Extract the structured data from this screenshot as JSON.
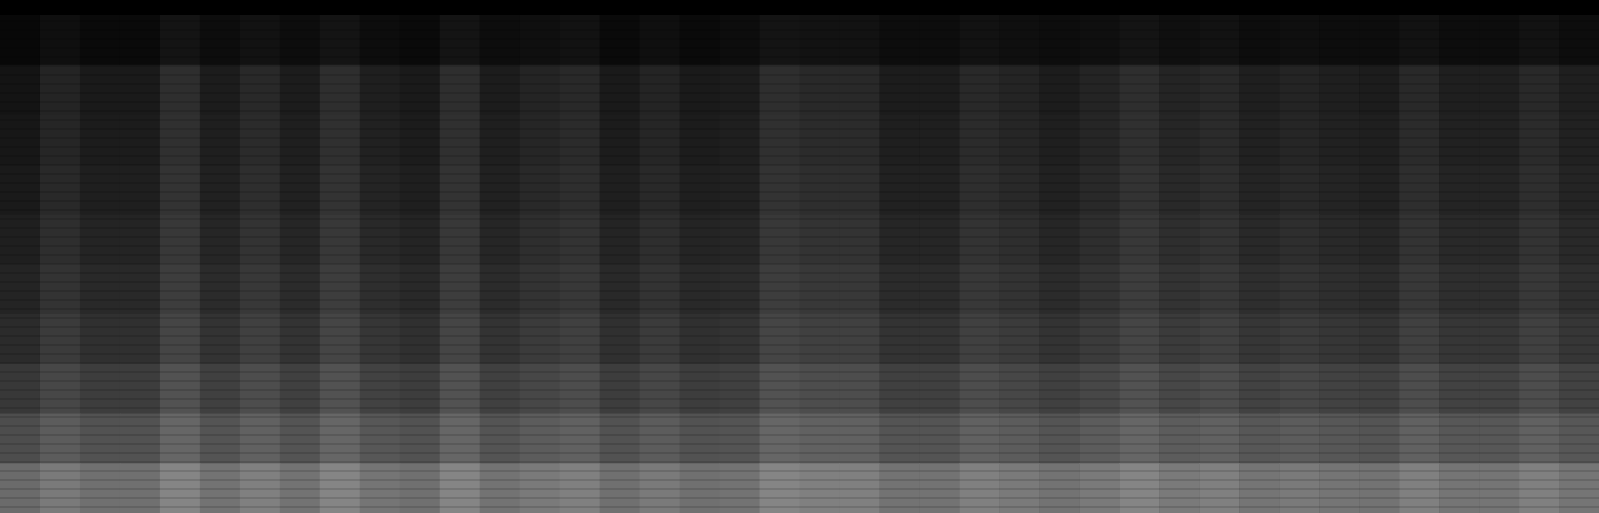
{
  "chart_data": {
    "type": "heatmap",
    "tick_labels": false,
    "grid": false,
    "color": "#ffffff",
    "zlim": [
      0,
      1
    ],
    "cells": [
      [
        0.03,
        0.06,
        0.04,
        0.04,
        0.08,
        0.05,
        0.07,
        0.05,
        0.08,
        0.05,
        0.04,
        0.08,
        0.05,
        0.06,
        0.07,
        0.04,
        0.06,
        0.04,
        0.05,
        0.08,
        0.07,
        0.07,
        0.05,
        0.05,
        0.07,
        0.06,
        0.05,
        0.06,
        0.08,
        0.06,
        0.07,
        0.05,
        0.06,
        0.05,
        0.05,
        0.07,
        0.05,
        0.05,
        0.07,
        0.05
      ],
      [
        0.08,
        0.14,
        0.1,
        0.1,
        0.18,
        0.11,
        0.16,
        0.11,
        0.18,
        0.12,
        0.1,
        0.18,
        0.11,
        0.14,
        0.16,
        0.1,
        0.14,
        0.1,
        0.11,
        0.18,
        0.16,
        0.16,
        0.11,
        0.11,
        0.16,
        0.14,
        0.11,
        0.14,
        0.18,
        0.14,
        0.16,
        0.12,
        0.14,
        0.12,
        0.11,
        0.16,
        0.12,
        0.12,
        0.16,
        0.12
      ],
      [
        0.09,
        0.15,
        0.11,
        0.11,
        0.19,
        0.12,
        0.17,
        0.12,
        0.19,
        0.13,
        0.11,
        0.19,
        0.12,
        0.15,
        0.17,
        0.11,
        0.15,
        0.11,
        0.12,
        0.19,
        0.17,
        0.17,
        0.12,
        0.12,
        0.17,
        0.15,
        0.12,
        0.15,
        0.19,
        0.15,
        0.17,
        0.13,
        0.15,
        0.13,
        0.12,
        0.17,
        0.13,
        0.13,
        0.17,
        0.13
      ],
      [
        0.1,
        0.16,
        0.12,
        0.12,
        0.2,
        0.13,
        0.18,
        0.13,
        0.2,
        0.14,
        0.12,
        0.2,
        0.13,
        0.16,
        0.18,
        0.12,
        0.16,
        0.12,
        0.13,
        0.2,
        0.18,
        0.18,
        0.13,
        0.13,
        0.18,
        0.16,
        0.13,
        0.16,
        0.2,
        0.16,
        0.18,
        0.14,
        0.16,
        0.14,
        0.13,
        0.18,
        0.14,
        0.14,
        0.18,
        0.14
      ],
      [
        0.12,
        0.18,
        0.14,
        0.14,
        0.22,
        0.15,
        0.2,
        0.15,
        0.22,
        0.16,
        0.14,
        0.22,
        0.15,
        0.18,
        0.2,
        0.14,
        0.18,
        0.14,
        0.15,
        0.22,
        0.2,
        0.2,
        0.15,
        0.15,
        0.2,
        0.18,
        0.15,
        0.18,
        0.22,
        0.18,
        0.2,
        0.16,
        0.18,
        0.16,
        0.15,
        0.2,
        0.16,
        0.16,
        0.2,
        0.16
      ],
      [
        0.14,
        0.2,
        0.16,
        0.16,
        0.24,
        0.17,
        0.22,
        0.17,
        0.24,
        0.18,
        0.16,
        0.24,
        0.17,
        0.2,
        0.22,
        0.16,
        0.2,
        0.16,
        0.17,
        0.24,
        0.22,
        0.22,
        0.17,
        0.17,
        0.22,
        0.2,
        0.17,
        0.2,
        0.24,
        0.2,
        0.22,
        0.18,
        0.2,
        0.18,
        0.17,
        0.22,
        0.18,
        0.18,
        0.22,
        0.18
      ],
      [
        0.17,
        0.23,
        0.19,
        0.19,
        0.27,
        0.2,
        0.25,
        0.2,
        0.27,
        0.21,
        0.19,
        0.27,
        0.2,
        0.23,
        0.25,
        0.19,
        0.23,
        0.19,
        0.2,
        0.27,
        0.25,
        0.25,
        0.2,
        0.2,
        0.25,
        0.23,
        0.2,
        0.23,
        0.27,
        0.23,
        0.25,
        0.21,
        0.23,
        0.21,
        0.2,
        0.25,
        0.21,
        0.21,
        0.25,
        0.21
      ],
      [
        0.22,
        0.28,
        0.24,
        0.24,
        0.32,
        0.25,
        0.3,
        0.25,
        0.32,
        0.26,
        0.24,
        0.32,
        0.25,
        0.28,
        0.3,
        0.24,
        0.28,
        0.24,
        0.25,
        0.32,
        0.3,
        0.3,
        0.25,
        0.25,
        0.3,
        0.28,
        0.25,
        0.28,
        0.32,
        0.28,
        0.3,
        0.26,
        0.28,
        0.26,
        0.25,
        0.3,
        0.26,
        0.26,
        0.3,
        0.26
      ],
      [
        0.3,
        0.36,
        0.32,
        0.32,
        0.4,
        0.33,
        0.38,
        0.33,
        0.4,
        0.34,
        0.32,
        0.4,
        0.33,
        0.36,
        0.38,
        0.32,
        0.36,
        0.32,
        0.33,
        0.4,
        0.38,
        0.38,
        0.33,
        0.33,
        0.38,
        0.36,
        0.33,
        0.36,
        0.4,
        0.36,
        0.38,
        0.34,
        0.36,
        0.34,
        0.33,
        0.38,
        0.34,
        0.34,
        0.38,
        0.34
      ],
      [
        0.42,
        0.48,
        0.44,
        0.44,
        0.52,
        0.45,
        0.5,
        0.45,
        0.52,
        0.46,
        0.44,
        0.52,
        0.45,
        0.48,
        0.5,
        0.44,
        0.48,
        0.44,
        0.45,
        0.52,
        0.5,
        0.5,
        0.45,
        0.45,
        0.5,
        0.48,
        0.45,
        0.48,
        0.52,
        0.48,
        0.5,
        0.46,
        0.48,
        0.46,
        0.45,
        0.5,
        0.46,
        0.46,
        0.5,
        0.46
      ]
    ]
  }
}
